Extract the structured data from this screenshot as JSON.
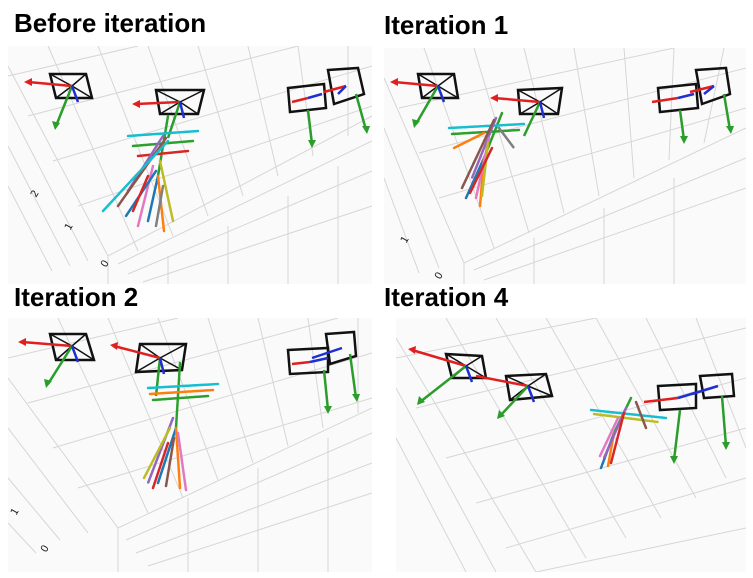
{
  "panels": [
    {
      "title": "Before iteration",
      "ticks": [
        "2",
        "1",
        "0"
      ]
    },
    {
      "title": "Iteration 1",
      "ticks": [
        "1",
        "0"
      ]
    },
    {
      "title": "Iteration 2",
      "ticks": [
        "1",
        "0"
      ]
    },
    {
      "title": "Iteration 4",
      "ticks": []
    }
  ],
  "colors": {
    "x_axis": "#e02020",
    "y_axis": "#2a9d2a",
    "z_axis": "#1f2fd0",
    "camera": "#111111",
    "grid": "#d6d6d6",
    "skeleton": [
      "#2ca02c",
      "#1f77b4",
      "#ff7f0e",
      "#d62728",
      "#9467bd",
      "#8c564b",
      "#e377c2",
      "#17becf",
      "#bcbd22",
      "#7f7f7f"
    ]
  },
  "icons": [
    "camera-frustum-icon",
    "skeleton-icon"
  ]
}
